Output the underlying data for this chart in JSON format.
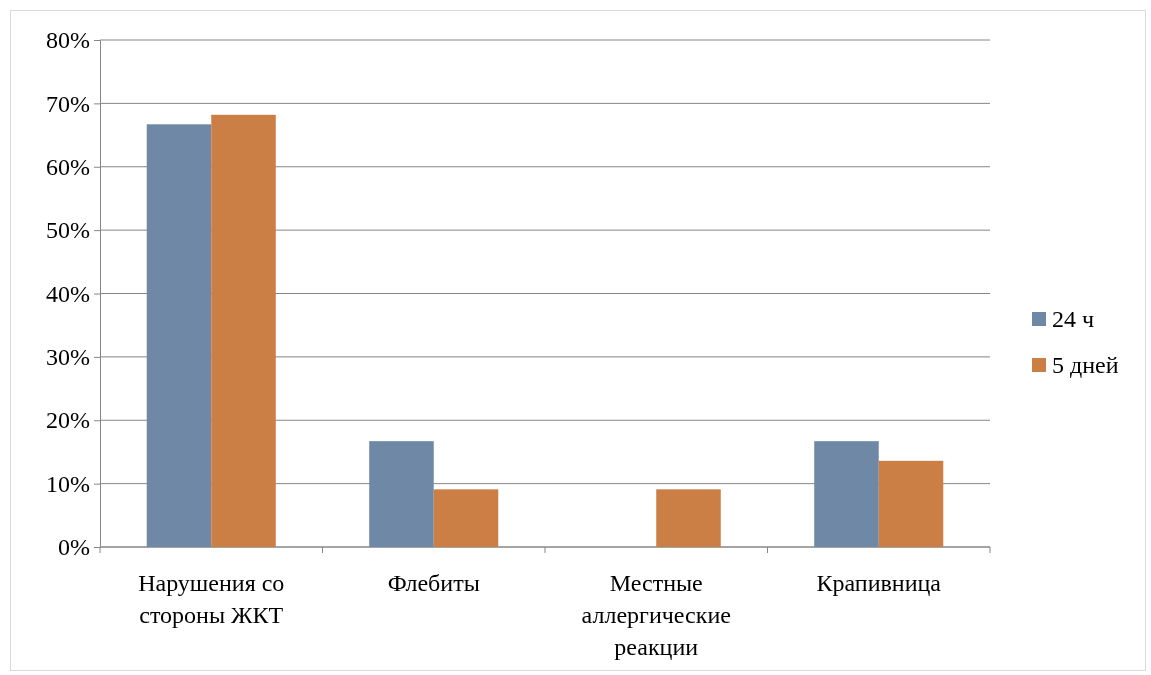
{
  "chart_data": {
    "type": "bar",
    "categories": [
      "Нарушения со стороны ЖКТ",
      "Флебиты",
      "Местные аллергические реакции",
      "Крапивница"
    ],
    "series": [
      {
        "name": "24 ч",
        "color": "#6e88a6",
        "values": [
          66.7,
          16.7,
          0,
          16.7
        ]
      },
      {
        "name": "5 дней",
        "color": "#cc7f45",
        "values": [
          68.2,
          9.1,
          9.1,
          13.6
        ]
      }
    ],
    "ylim": [
      0,
      80
    ],
    "yticks": [
      {
        "value": 0,
        "label": "0%"
      },
      {
        "value": 10,
        "label": "10%"
      },
      {
        "value": 20,
        "label": "20%"
      },
      {
        "value": 30,
        "label": "30%"
      },
      {
        "value": 40,
        "label": "40%"
      },
      {
        "value": 50,
        "label": "50%"
      },
      {
        "value": 60,
        "label": "60%"
      },
      {
        "value": 70,
        "label": "70%"
      },
      {
        "value": 80,
        "label": "80%"
      }
    ],
    "grid": "y",
    "legend": "right"
  }
}
